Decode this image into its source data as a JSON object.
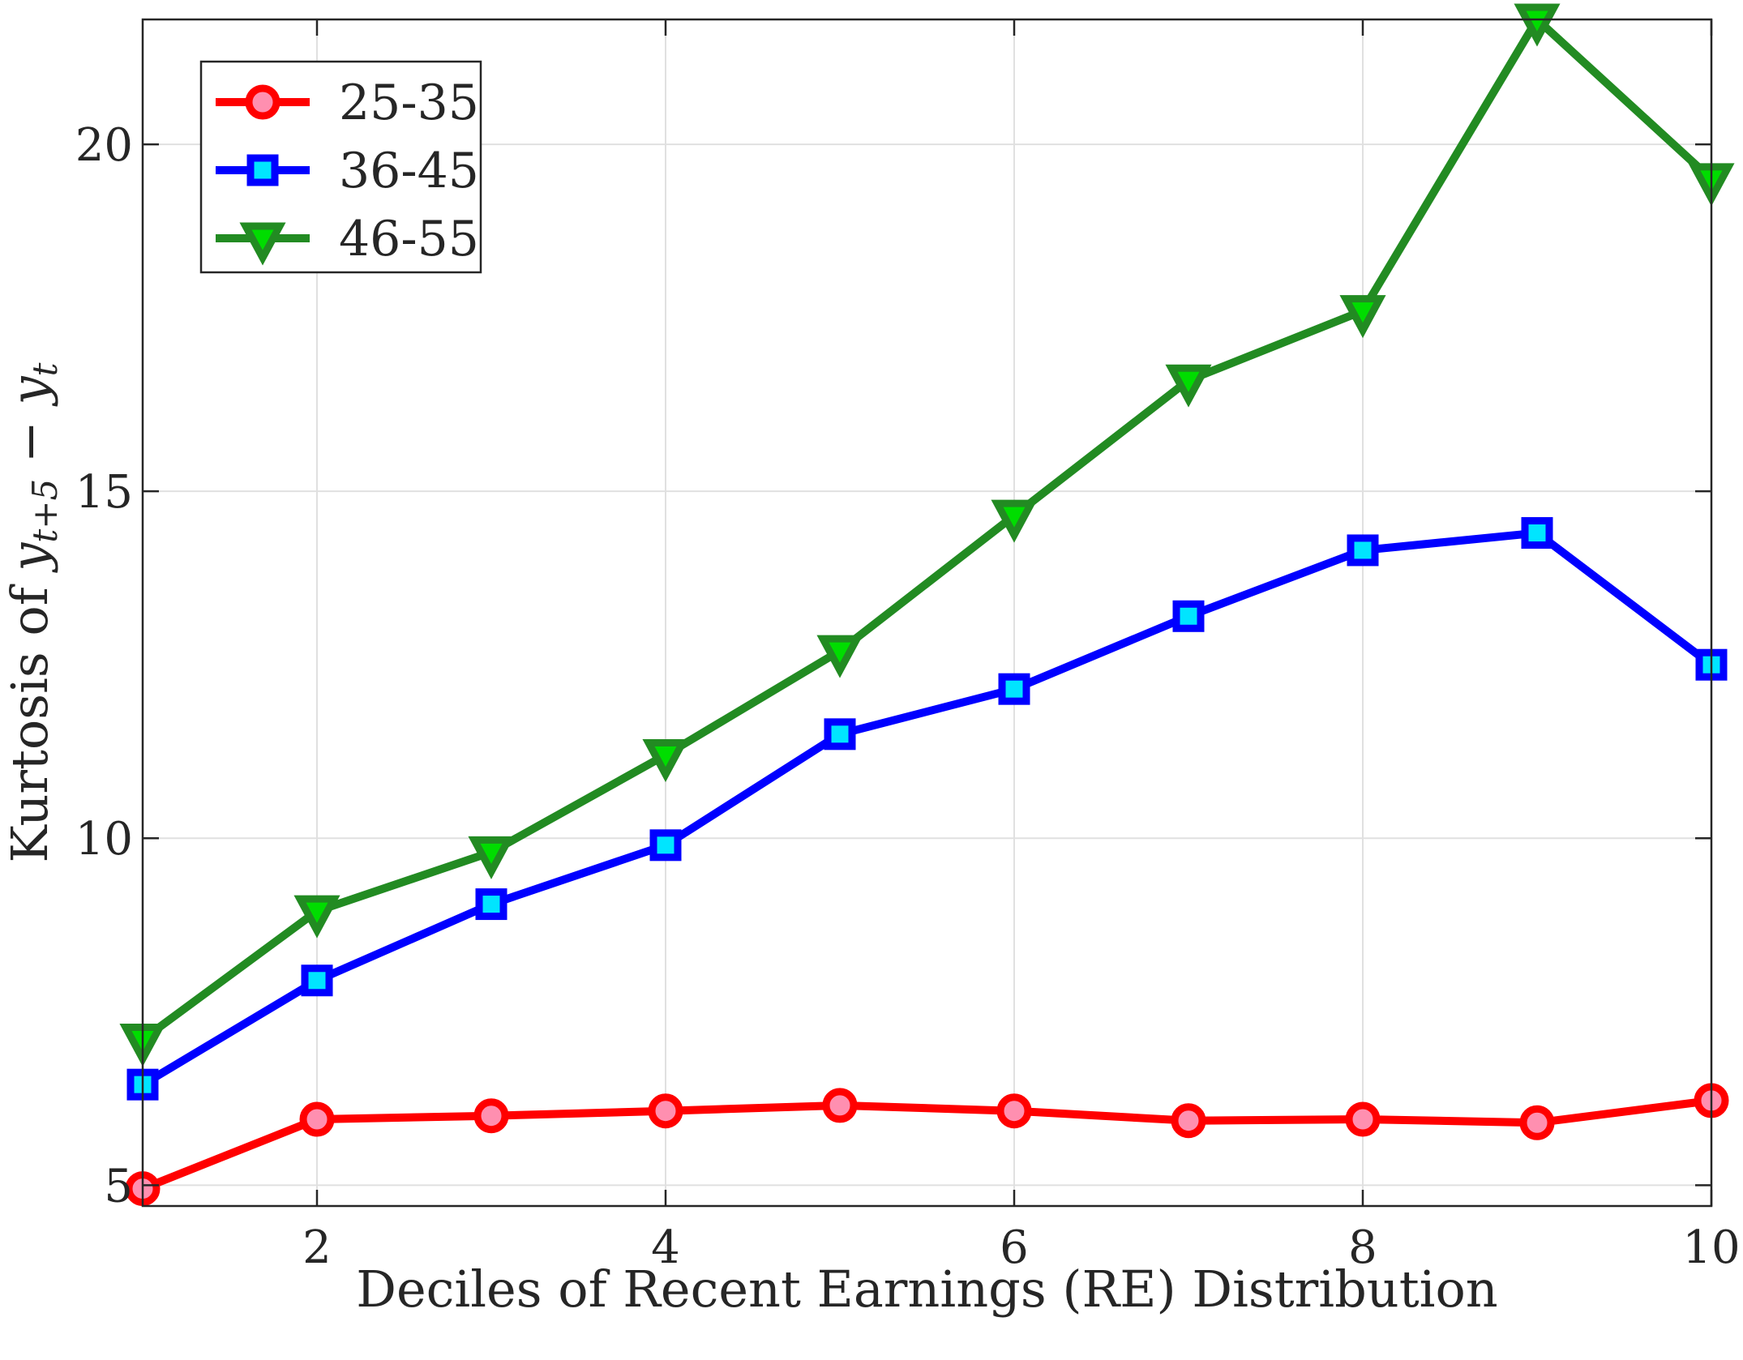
{
  "chart_data": {
    "type": "line",
    "xlabel": "Deciles of Recent Earnings (RE) Distribution",
    "ylabel": {
      "prefix": "Kurtosis of ",
      "y1": "y",
      "s1": "t+5",
      "minus": " − ",
      "y2": "y",
      "s2": "t"
    },
    "xlim": [
      1,
      10
    ],
    "ylim": [
      4.7,
      21.8
    ],
    "xticks": [
      2,
      4,
      6,
      8,
      10
    ],
    "yticks": [
      5,
      10,
      15,
      20
    ],
    "grid": true,
    "legend_position": "top-left",
    "x": [
      1,
      2,
      3,
      4,
      5,
      6,
      7,
      8,
      9,
      10
    ],
    "series": [
      {
        "name": "25-35",
        "color": "#ff0000",
        "marker": "circle",
        "marker_fill": "#ff8fb0",
        "values": [
          4.95,
          5.95,
          6.0,
          6.07,
          6.15,
          6.07,
          5.93,
          5.95,
          5.9,
          6.22
        ]
      },
      {
        "name": "36-45",
        "color": "#0000ff",
        "marker": "square",
        "marker_fill": "#00e5ff",
        "values": [
          6.45,
          7.95,
          9.05,
          9.9,
          11.5,
          12.15,
          13.2,
          14.15,
          14.4,
          12.5
        ]
      },
      {
        "name": "46-55",
        "color": "#228b22",
        "marker": "triangle-down",
        "marker_fill": "#00dd00",
        "values": [
          7.1,
          8.95,
          9.8,
          11.2,
          12.7,
          14.65,
          16.6,
          17.6,
          21.8,
          19.5
        ]
      }
    ]
  }
}
